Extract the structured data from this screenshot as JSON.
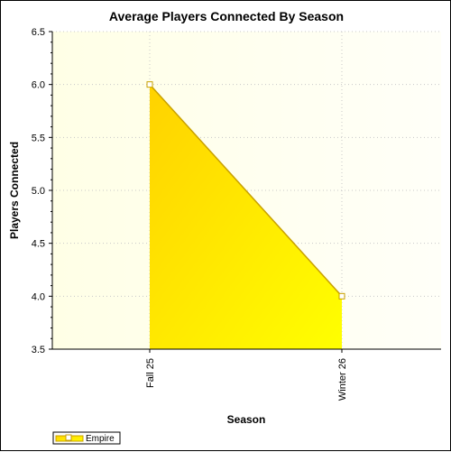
{
  "chart_data": {
    "type": "area",
    "title": "Average Players Connected By Season",
    "xlabel": "Season",
    "ylabel": "Players Connected",
    "categories": [
      "Fall 25",
      "Winter 26"
    ],
    "series": [
      {
        "name": "Empire",
        "values": [
          6.0,
          4.0
        ]
      }
    ],
    "ylim": [
      3.5,
      6.5
    ],
    "yticks": [
      "3.5",
      "4.0",
      "4.5",
      "5.0",
      "5.5",
      "6.0",
      "6.5"
    ],
    "grid": true,
    "legend_position": "bottom-left",
    "colors": {
      "fill_start": "#FFD200",
      "fill_end": "#FFFF00",
      "line": "#C8A000",
      "plot_bg_start": "#FFFFE6",
      "plot_bg_end": "#FFFFF8",
      "grid": "#C8C8C8",
      "marker_fill": "#FFFFFF"
    }
  }
}
